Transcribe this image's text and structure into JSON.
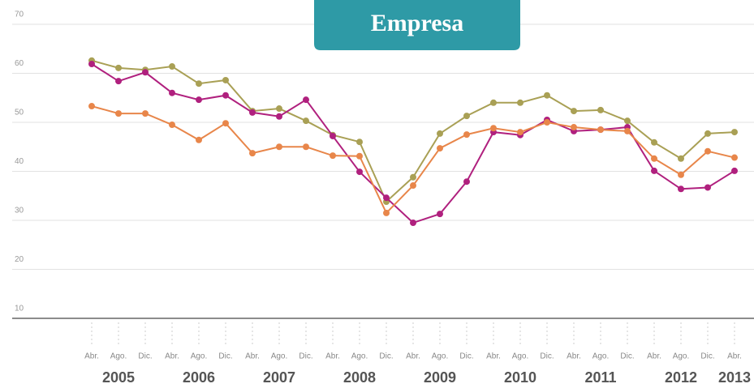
{
  "chart_data": {
    "type": "line",
    "title": "Empresa",
    "categories": [
      "Abr.",
      "Ago.",
      "Dic.",
      "Abr.",
      "Ago.",
      "Dic.",
      "Abr.",
      "Ago.",
      "Dic.",
      "Abr.",
      "Ago.",
      "Dic.",
      "Abr.",
      "Ago.",
      "Dic.",
      "Abr.",
      "Ago.",
      "Dic.",
      "Abr.",
      "Ago.",
      "Dic.",
      "Abr.",
      "Ago.",
      "Dic.",
      "Abr."
    ],
    "year_labels": [
      "2005",
      "2006",
      "2007",
      "2008",
      "2009",
      "2010",
      "2011",
      "2012",
      "2013"
    ],
    "series": [
      {
        "color": "#a9a055",
        "values": [
          62.6,
          61.1,
          60.7,
          61.4,
          57.9,
          58.6,
          52.3,
          52.8,
          50.3,
          47.4,
          46.0,
          33.8,
          38.8,
          47.7,
          51.3,
          54.0,
          54.0,
          55.5,
          52.3,
          52.5,
          50.3,
          45.9,
          42.6,
          47.7,
          48.0
        ]
      },
      {
        "color": "#b0207e",
        "values": [
          61.9,
          58.4,
          60.2,
          56.0,
          54.6,
          55.5,
          52.0,
          51.2,
          54.6,
          47.2,
          39.9,
          34.6,
          29.5,
          31.3,
          37.9,
          48.0,
          47.4,
          50.5,
          48.2,
          48.5,
          49.0,
          40.1,
          36.4,
          36.7,
          40.1
        ]
      },
      {
        "color": "#e8864a",
        "values": [
          53.3,
          51.8,
          51.8,
          49.5,
          46.4,
          49.8,
          43.7,
          45.0,
          45.0,
          43.2,
          43.1,
          31.5,
          37.1,
          44.7,
          47.5,
          48.8,
          48.0,
          50.0,
          49.0,
          48.5,
          48.2,
          42.6,
          39.3,
          44.1,
          42.8
        ]
      }
    ],
    "ylim": [
      10,
      70
    ],
    "yticks": [
      10,
      20,
      30,
      40,
      50,
      60,
      70
    ],
    "grid": true
  }
}
